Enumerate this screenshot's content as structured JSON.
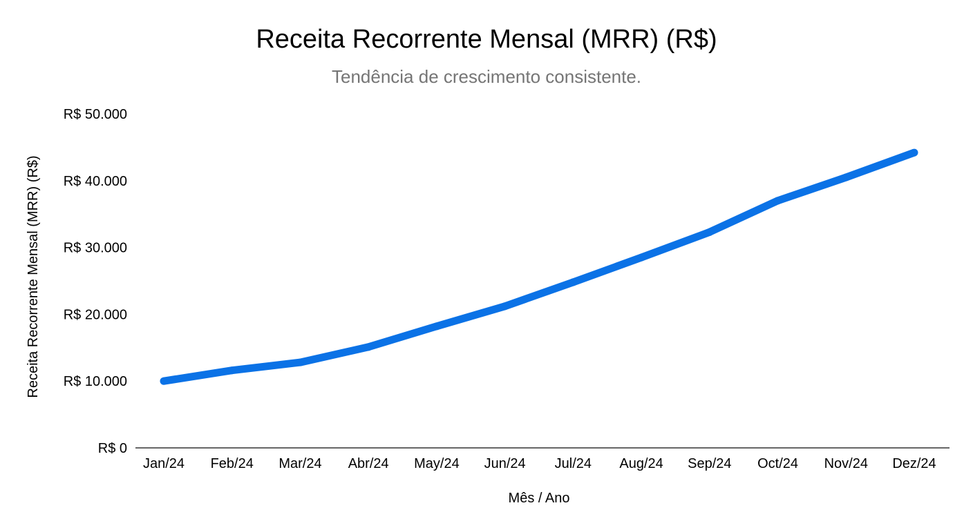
{
  "chart_data": {
    "type": "line",
    "title": "Receita Recorrente Mensal (MRR) (R$)",
    "subtitle": "Tendência de crescimento consistente.",
    "xlabel": "Mês / Ano",
    "ylabel": "Receita Recorrente Mensal (MRR) (R$)",
    "categories": [
      "Jan/24",
      "Feb/24",
      "Mar/24",
      "Abr/24",
      "May/24",
      "Jun/24",
      "Jul/24",
      "Aug/24",
      "Sep/24",
      "Oct/24",
      "Nov/24",
      "Dez/24"
    ],
    "series": [
      {
        "values": [
          10000,
          11600,
          12800,
          15100,
          18200,
          21200,
          24800,
          28500,
          32300,
          37000,
          40500,
          44200
        ],
        "color": "#0b72e6"
      }
    ],
    "ylim": [
      0,
      50000
    ],
    "yticks": [
      0,
      10000,
      20000,
      30000,
      40000,
      50000
    ],
    "ytick_labels": [
      "R$ 0",
      "R$ 10.000",
      "R$ 20.000",
      "R$ 30.000",
      "R$ 40.000",
      "R$ 50.000"
    ],
    "grid": false,
    "legend": "none"
  }
}
